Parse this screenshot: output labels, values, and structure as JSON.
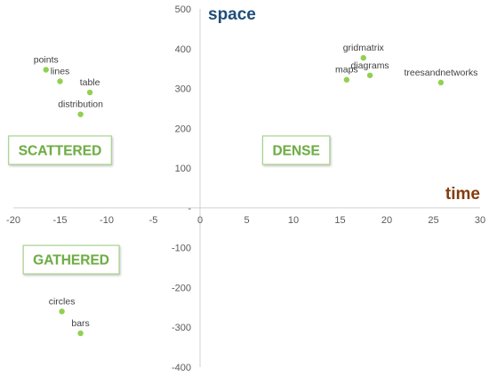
{
  "chart_data": {
    "type": "scatter",
    "xlabel": "time",
    "ylabel": "space",
    "xlim": [
      -20,
      30
    ],
    "ylim": [
      -400,
      500
    ],
    "x_ticks": [
      -20,
      -15,
      -10,
      -5,
      0,
      5,
      10,
      15,
      20,
      25,
      30
    ],
    "y_ticks": [
      -400,
      -300,
      -200,
      -100,
      0,
      100,
      200,
      300,
      400,
      500
    ],
    "grid": false,
    "point_color": "#92d050",
    "xlabel_color": "#843c0c",
    "ylabel_color": "#1f4e79",
    "region_text_color": "#70ad47",
    "region_border_color": "#a9d18e",
    "points": [
      {
        "label": "points",
        "x": -16.5,
        "y": 347
      },
      {
        "label": "lines",
        "x": -15.0,
        "y": 318
      },
      {
        "label": "table",
        "x": -11.8,
        "y": 290
      },
      {
        "label": "distribution",
        "x": -12.8,
        "y": 235
      },
      {
        "label": "gridmatrix",
        "x": 17.5,
        "y": 377
      },
      {
        "label": "diagrams",
        "x": 18.2,
        "y": 333
      },
      {
        "label": "maps",
        "x": 15.7,
        "y": 322
      },
      {
        "label": "treesandnetworks",
        "x": 25.8,
        "y": 315
      },
      {
        "label": "circles",
        "x": -14.8,
        "y": -260
      },
      {
        "label": "bars",
        "x": -12.8,
        "y": -315
      }
    ],
    "regions": [
      {
        "label": "SCATTERED",
        "x": -15.0,
        "y": 145
      },
      {
        "label": "DENSE",
        "x": 10.3,
        "y": 145
      },
      {
        "label": "GATHERED",
        "x": -13.8,
        "y": -130
      }
    ]
  }
}
